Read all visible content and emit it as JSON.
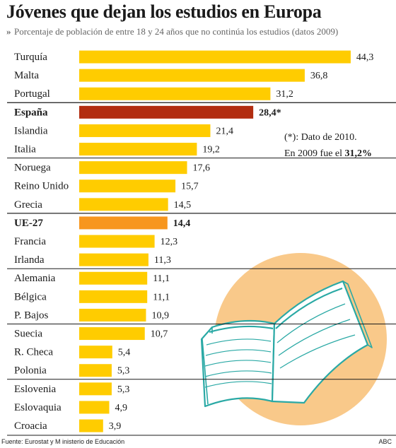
{
  "header": {
    "title": "Jóvenes que dejan los estudios en Europa",
    "subtitle": "Porcentaje de población de entre 18 y 24 años que no continúa los estudios (datos 2009)",
    "chevron": "»"
  },
  "note": {
    "line1": "(*): Dato de 2010.",
    "line2_prefix": "En 2009 fue el ",
    "line2_value": "31,2%"
  },
  "footer": {
    "source": "Fuente: Eurostat y M   inisterio de Educación",
    "credit": "ABC"
  },
  "colors": {
    "default_bar": "#FFCC00",
    "spain_bar": "#B22D10",
    "eu_bar": "#F7961E",
    "circle": "#F9C98A",
    "book_stroke": "#2AA9A5"
  },
  "chart_data": {
    "type": "bar",
    "orientation": "horizontal",
    "xlim": [
      0,
      45
    ],
    "categories": [
      "Turquía",
      "Malta",
      "Portugal",
      "España",
      "Islandia",
      "Italia",
      "Noruega",
      "Reino Unido",
      "Grecia",
      "UE-27",
      "Francia",
      "Irlanda",
      "Alemania",
      "Bélgica",
      "P. Bajos",
      "Suecia",
      "R. Checa",
      "Polonia",
      "Eslovenia",
      "Eslovaquia",
      "Croacia"
    ],
    "values": [
      44.3,
      36.8,
      31.2,
      28.4,
      21.4,
      19.2,
      17.6,
      15.7,
      14.5,
      14.4,
      12.3,
      11.3,
      11.1,
      11.1,
      10.9,
      10.7,
      5.4,
      5.3,
      5.3,
      4.9,
      3.9
    ],
    "value_labels": [
      "44,3",
      "36,8",
      "31,2",
      "28,4*",
      "21,4",
      "19,2",
      "17,6",
      "15,7",
      "14,5",
      "14,4",
      "12,3",
      "11,3",
      "11,1",
      "11,1",
      "10,9",
      "10,7",
      "5,4",
      "5,3",
      "5,3",
      "4,9",
      "3,9"
    ],
    "highlight": {
      "España": "spain",
      "UE-27": "eu"
    },
    "group_separators_after": [
      "Portugal",
      "Italia",
      "Grecia",
      "Irlanda",
      "P. Bajos",
      "Polonia"
    ],
    "grid": false,
    "legend": "none"
  }
}
